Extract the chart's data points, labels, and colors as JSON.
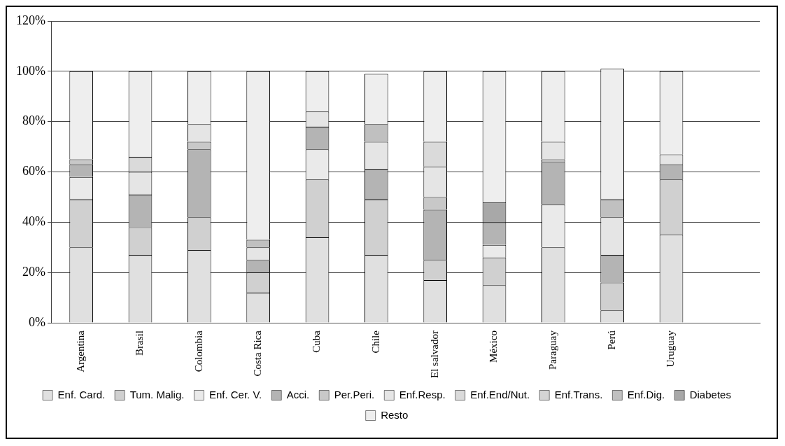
{
  "chart_data": {
    "type": "bar",
    "stacked": true,
    "categories": [
      "Argentina",
      "Brasil",
      "Colombia",
      "Costa Rica",
      "Cuba",
      "Chile",
      "El salvador",
      "México",
      "Paraguay",
      "Perú",
      "Uruguay",
      null
    ],
    "series": [
      {
        "name": "Enf. Card.",
        "color": "#e0e0e0",
        "values": [
          30,
          27,
          29,
          12,
          34,
          27,
          17,
          15,
          30,
          5,
          35,
          null
        ]
      },
      {
        "name": "Tum. Malig.",
        "color": "#d0d0d0",
        "values": [
          19,
          11,
          13,
          8,
          23,
          22,
          8,
          11,
          null,
          11,
          22,
          null
        ]
      },
      {
        "name": "Enf. Cer. V.",
        "color": "#eaeaea",
        "values": [
          9,
          null,
          null,
          null,
          12,
          null,
          null,
          5,
          17,
          null,
          null,
          null
        ]
      },
      {
        "name": "Acci.",
        "color": "#b4b4b4",
        "values": [
          5,
          13,
          27,
          5,
          9,
          12,
          20,
          9,
          17,
          11,
          6,
          null
        ]
      },
      {
        "name": "Per.Peri.",
        "color": "#c8c8c8",
        "values": [
          2,
          null,
          3,
          null,
          null,
          null,
          5,
          null,
          1,
          null,
          null,
          null
        ]
      },
      {
        "name": "Enf.Resp.",
        "color": "#e5e5e5",
        "values": [
          null,
          9,
          7,
          5,
          6,
          11,
          12,
          null,
          7,
          15,
          4,
          null
        ]
      },
      {
        "name": "Enf.End/Nut.",
        "color": "#dadada",
        "values": [
          null,
          6,
          null,
          null,
          null,
          null,
          10,
          null,
          null,
          null,
          null,
          null
        ]
      },
      {
        "name": "Enf.Trans.",
        "color": "#d4d4d4",
        "values": [
          null,
          null,
          null,
          null,
          null,
          null,
          null,
          null,
          null,
          null,
          null,
          null
        ]
      },
      {
        "name": "Enf.Dig.",
        "color": "#c0c0c0",
        "values": [
          null,
          null,
          null,
          3,
          null,
          7,
          null,
          null,
          null,
          7,
          null,
          null
        ]
      },
      {
        "name": "Diabetes",
        "color": "#a8a8a8",
        "values": [
          null,
          null,
          null,
          null,
          null,
          null,
          null,
          8,
          null,
          null,
          null,
          null
        ]
      },
      {
        "name": "Resto",
        "color": "#eeeeee",
        "values": [
          35,
          34,
          21,
          67,
          16,
          20,
          28,
          52,
          28,
          52,
          33,
          null
        ]
      }
    ],
    "ylim": [
      0,
      120
    ],
    "yticks": [
      {
        "value": 0,
        "label": "0%"
      },
      {
        "value": 20,
        "label": "20%"
      },
      {
        "value": 40,
        "label": "40%"
      },
      {
        "value": 60,
        "label": "60%"
      },
      {
        "value": 80,
        "label": "80%"
      },
      {
        "value": 100,
        "label": "100%"
      },
      {
        "value": 120,
        "label": "120%"
      }
    ],
    "grid": "y",
    "legend": "bottom"
  }
}
